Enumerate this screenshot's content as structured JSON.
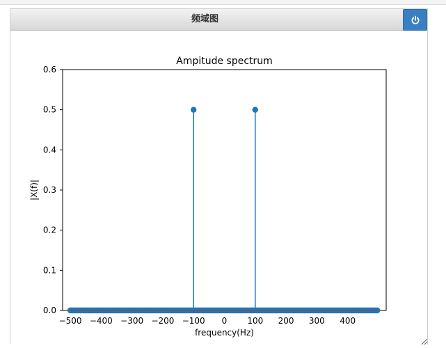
{
  "window": {
    "title": "频域图",
    "power_icon": "power-icon",
    "resize_icon": "resize-grip-icon"
  },
  "chart_data": {
    "type": "stem",
    "title": "Ampitude spectrum",
    "xlabel": "frequency(Hz)",
    "ylabel": "|X(f)|",
    "xlim": [
      -525,
      525
    ],
    "ylim": [
      0,
      0.6
    ],
    "xticks": [
      -500,
      -400,
      -300,
      -200,
      -100,
      0,
      100,
      200,
      300,
      400
    ],
    "xtick_labels": [
      "−500",
      "−400",
      "−300",
      "−200",
      "−100",
      "0",
      "100",
      "200",
      "300",
      "400"
    ],
    "yticks": [
      0.0,
      0.1,
      0.2,
      0.3,
      0.4,
      0.5,
      0.6
    ],
    "ytick_labels": [
      "0.0",
      "0.1",
      "0.2",
      "0.3",
      "0.4",
      "0.5",
      "0.6"
    ],
    "sample_spacing_hz": 4,
    "x_start": -500,
    "x_end": 496,
    "peaks": [
      {
        "x": -100,
        "y": 0.5
      },
      {
        "x": 100,
        "y": 0.5
      }
    ],
    "baseline_value": 0,
    "colors": {
      "stem": "#1f77b4",
      "baseline": "#d62728"
    }
  }
}
